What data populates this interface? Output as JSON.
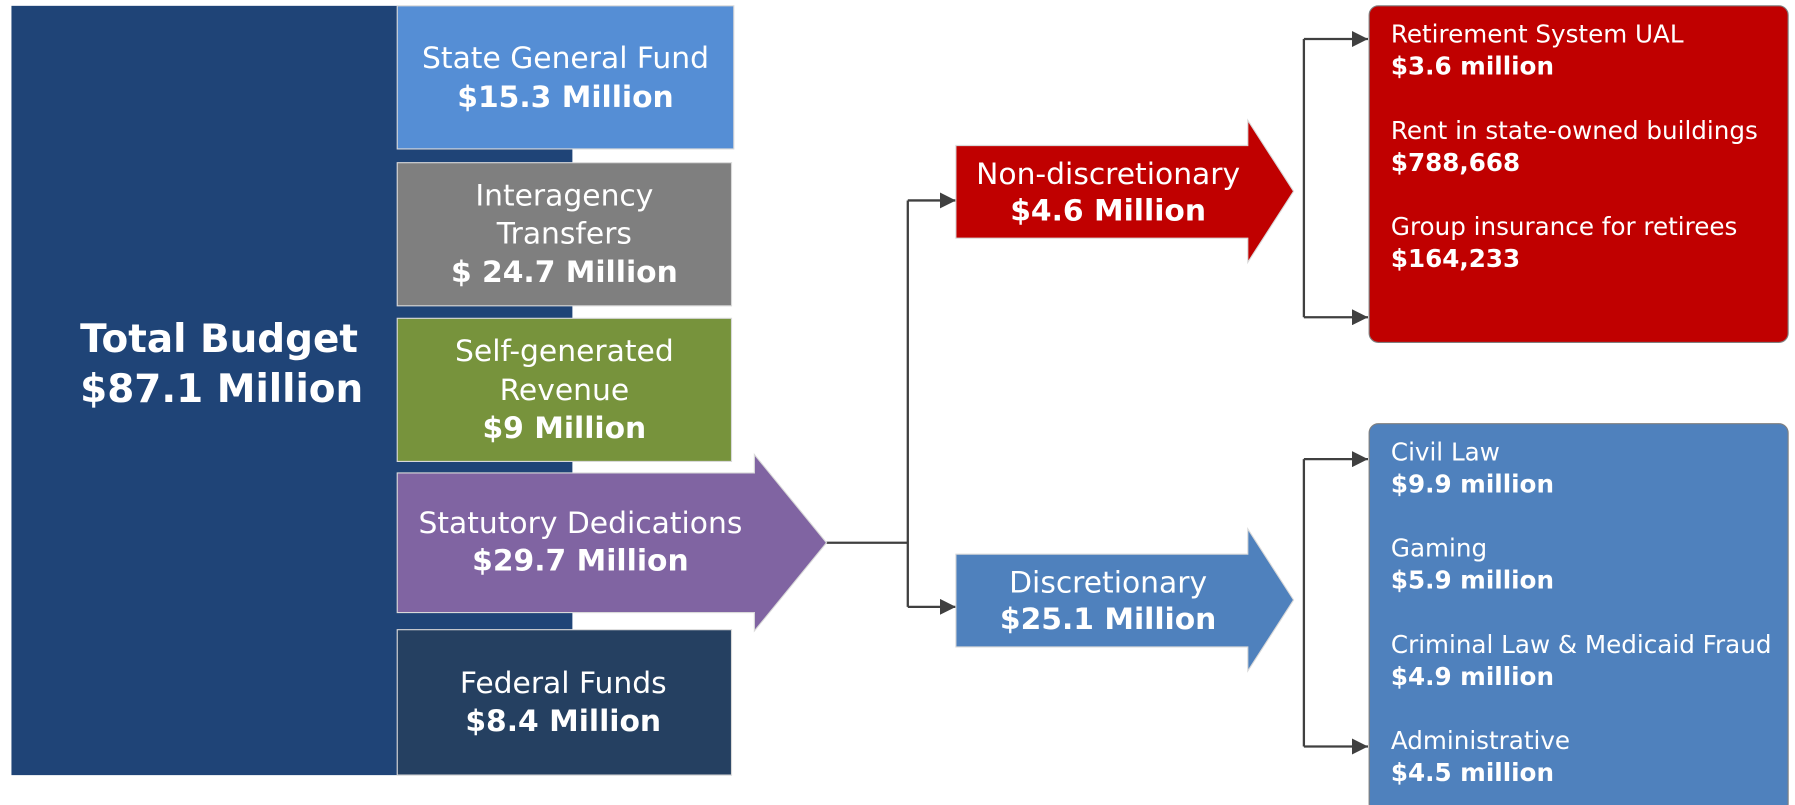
{
  "total": {
    "label": "Total Budget",
    "amount": "$87.1 Million"
  },
  "sources": [
    {
      "label": [
        "State General Fund"
      ],
      "amount": "$15.3 Million"
    },
    {
      "label": [
        "Interagency",
        "Transfers"
      ],
      "amount": "$ 24.7 Million"
    },
    {
      "label": [
        "Self-generated",
        "Revenue"
      ],
      "amount": "$9 Million"
    },
    {
      "label": [
        "Statutory Dedications"
      ],
      "amount": "$29.7 Million"
    },
    {
      "label": [
        "Federal Funds"
      ],
      "amount": "$8.4 Million"
    }
  ],
  "branches": [
    {
      "label": "Non-discretionary",
      "amount": "$4.6 Million",
      "items": [
        {
          "label": "Retirement System UAL",
          "amount": "$3.6 million"
        },
        {
          "label": "Rent in state-owned buildings",
          "amount": "$788,668"
        },
        {
          "label": "Group insurance for retirees",
          "amount": "$164,233"
        }
      ]
    },
    {
      "label": "Discretionary",
      "amount": "$25.1 Million",
      "items": [
        {
          "label": "Civil Law",
          "amount": "$9.9 million"
        },
        {
          "label": "Gaming",
          "amount": "$5.9 million"
        },
        {
          "label": "Criminal Law & Medicaid Fraud",
          "amount": "$4.9 million"
        },
        {
          "label": "Administrative",
          "amount": "$4.5 million"
        }
      ]
    }
  ]
}
